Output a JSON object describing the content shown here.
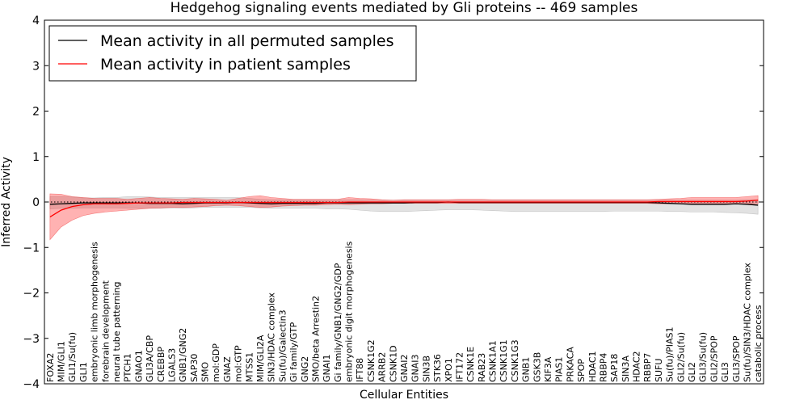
{
  "chart_data": {
    "type": "line",
    "title": "Hedgehog signaling events mediated by Gli proteins -- 469 samples",
    "xlabel": "Cellular Entities",
    "ylabel": "Inferred Activity",
    "ylim": [
      -4,
      4
    ],
    "yticks": [
      -4,
      -3,
      -2,
      -1,
      0,
      1,
      2,
      3,
      4
    ],
    "ytick_labels": [
      "−4",
      "−3",
      "−2",
      "−1",
      "0",
      "1",
      "2",
      "3",
      "4"
    ],
    "legend_position": "top-left",
    "categories": [
      "FOXA2",
      "MIM/GLI1",
      "GLI1/Su(fu)",
      "GLI1",
      "embryonic limb morphogenesis",
      "forebrain development",
      "neural tube patterning",
      "PTCH1",
      "GNAO1",
      "GLI3A/CBP",
      "CREBBP",
      "LGALS3",
      "GNB1/GNG2",
      "SAP30",
      "SMO",
      "mol:GDP",
      "GNAZ",
      "mol:GTP",
      "MTSS1",
      "MIM/GLI2A",
      "SIN3/HDAC complex",
      "Su(fu)/Galectin3",
      "Gi family/GTP",
      "GNG2",
      "SMO/beta Arrestin2",
      "GNAI1",
      "Gi family/GNB1/GNG2/GDP",
      "embryonic digit morphogenesis",
      "IFT88",
      "CSNK1G2",
      "ARRB2",
      "CSNK1D",
      "GNAI2",
      "GNAI3",
      "SIN3B",
      "STK36",
      "XPO1",
      "IFT172",
      "CSNK1E",
      "RAB23",
      "CSNK1A1",
      "CSNK1G1",
      "CSNK1G3",
      "GNB1",
      "GSK3B",
      "KIF3A",
      "PIAS1",
      "PRKACA",
      "SPOP",
      "HDAC1",
      "RBBP4",
      "SAP18",
      "SIN3A",
      "HDAC2",
      "RBBP7",
      "SUFU",
      "Su(fu)/PIAS1",
      "GLI2/Su(fu)",
      "GLI2",
      "GLI3/Su(fu)",
      "GLI2/SPOP",
      "GLI3",
      "GLI3/SPOP",
      "Su(fu)/SIN3/HDAC complex",
      "catabolic process"
    ],
    "series": [
      {
        "name": "Mean activity in all permuted samples",
        "color": "#000000",
        "values": [
          -0.05,
          -0.04,
          -0.03,
          -0.02,
          -0.02,
          -0.02,
          -0.02,
          -0.02,
          -0.02,
          -0.03,
          -0.03,
          -0.03,
          -0.04,
          -0.03,
          -0.02,
          -0.02,
          -0.02,
          -0.01,
          -0.02,
          -0.03,
          -0.04,
          -0.03,
          -0.03,
          -0.03,
          -0.03,
          -0.02,
          -0.02,
          -0.02,
          -0.02,
          -0.02,
          -0.02,
          -0.02,
          -0.02,
          -0.01,
          -0.01,
          -0.01,
          0.0,
          -0.01,
          -0.01,
          -0.01,
          -0.01,
          -0.01,
          -0.01,
          -0.01,
          -0.01,
          -0.01,
          -0.01,
          -0.01,
          -0.01,
          -0.01,
          -0.01,
          -0.01,
          -0.01,
          -0.01,
          -0.01,
          -0.02,
          -0.03,
          -0.04,
          -0.05,
          -0.05,
          -0.05,
          -0.05,
          -0.04,
          -0.05,
          -0.07
        ],
        "band_upper": [
          0.12,
          0.12,
          0.11,
          0.09,
          0.09,
          0.1,
          0.1,
          0.12,
          0.12,
          0.11,
          0.1,
          0.1,
          0.1,
          0.1,
          0.1,
          0.1,
          0.1,
          0.1,
          0.08,
          0.06,
          0.05,
          0.05,
          0.05,
          0.05,
          0.05,
          0.05,
          0.05,
          0.05,
          0.05,
          0.04,
          0.04,
          0.04,
          0.04,
          0.04,
          0.04,
          0.04,
          0.04,
          0.04,
          0.04,
          0.04,
          0.04,
          0.04,
          0.04,
          0.04,
          0.04,
          0.04,
          0.04,
          0.04,
          0.04,
          0.04,
          0.04,
          0.04,
          0.04,
          0.04,
          0.04,
          0.04,
          0.04,
          0.04,
          0.04,
          0.04,
          0.04,
          0.04,
          0.04,
          0.05,
          0.05
        ],
        "band_lower": [
          -0.15,
          -0.14,
          -0.14,
          -0.13,
          -0.13,
          -0.13,
          -0.13,
          -0.14,
          -0.14,
          -0.14,
          -0.14,
          -0.13,
          -0.14,
          -0.13,
          -0.12,
          -0.12,
          -0.12,
          -0.12,
          -0.12,
          -0.13,
          -0.14,
          -0.14,
          -0.14,
          -0.14,
          -0.14,
          -0.15,
          -0.15,
          -0.16,
          -0.18,
          -0.2,
          -0.21,
          -0.21,
          -0.21,
          -0.2,
          -0.19,
          -0.18,
          -0.17,
          -0.17,
          -0.17,
          -0.18,
          -0.19,
          -0.2,
          -0.21,
          -0.21,
          -0.21,
          -0.21,
          -0.21,
          -0.21,
          -0.21,
          -0.21,
          -0.21,
          -0.2,
          -0.2,
          -0.2,
          -0.2,
          -0.2,
          -0.21,
          -0.21,
          -0.22,
          -0.22,
          -0.22,
          -0.23,
          -0.24,
          -0.25,
          -0.27
        ]
      },
      {
        "name": "Mean activity in patient samples",
        "color": "#ff0000",
        "values": [
          -0.33,
          -0.18,
          -0.1,
          -0.06,
          -0.04,
          -0.04,
          -0.04,
          -0.03,
          -0.02,
          -0.02,
          -0.02,
          -0.02,
          -0.01,
          -0.01,
          -0.01,
          -0.01,
          -0.01,
          -0.01,
          -0.01,
          -0.01,
          -0.01,
          -0.01,
          -0.01,
          -0.01,
          -0.01,
          -0.01,
          -0.01,
          0.0,
          0.0,
          0.0,
          0.0,
          0.0,
          0.0,
          0.0,
          0.0,
          0.0,
          0.0,
          0.0,
          0.0,
          0.0,
          0.0,
          0.0,
          0.0,
          0.0,
          0.0,
          0.0,
          0.0,
          0.0,
          0.0,
          0.0,
          0.0,
          0.0,
          0.0,
          0.0,
          0.0,
          0.01,
          0.01,
          0.01,
          0.01,
          0.01,
          0.01,
          0.01,
          0.01,
          0.02,
          0.04
        ],
        "band_upper": [
          0.18,
          0.17,
          0.12,
          0.1,
          0.08,
          0.08,
          0.08,
          0.06,
          0.08,
          0.1,
          0.08,
          0.07,
          0.06,
          0.08,
          0.07,
          0.06,
          0.04,
          0.08,
          0.12,
          0.14,
          0.1,
          0.08,
          0.06,
          0.06,
          0.06,
          0.06,
          0.06,
          0.1,
          0.08,
          0.07,
          0.05,
          0.04,
          0.05,
          0.05,
          0.05,
          0.05,
          0.05,
          0.06,
          0.06,
          0.06,
          0.05,
          0.05,
          0.05,
          0.05,
          0.05,
          0.05,
          0.05,
          0.05,
          0.05,
          0.05,
          0.05,
          0.05,
          0.05,
          0.05,
          0.05,
          0.06,
          0.07,
          0.08,
          0.1,
          0.1,
          0.1,
          0.1,
          0.1,
          0.12,
          0.14
        ],
        "band_lower": [
          -0.83,
          -0.55,
          -0.4,
          -0.3,
          -0.25,
          -0.22,
          -0.2,
          -0.18,
          -0.16,
          -0.14,
          -0.13,
          -0.12,
          -0.12,
          -0.11,
          -0.1,
          -0.08,
          -0.07,
          -0.08,
          -0.1,
          -0.12,
          -0.11,
          -0.09,
          -0.08,
          -0.07,
          -0.07,
          -0.06,
          -0.05,
          -0.06,
          -0.05,
          -0.04,
          -0.04,
          -0.03,
          -0.03,
          -0.03,
          -0.03,
          -0.03,
          -0.03,
          -0.03,
          -0.03,
          -0.03,
          -0.03,
          -0.03,
          -0.03,
          -0.03,
          -0.03,
          -0.03,
          -0.03,
          -0.03,
          -0.03,
          -0.03,
          -0.03,
          -0.03,
          -0.03,
          -0.03,
          -0.03,
          -0.04,
          -0.04,
          -0.04,
          -0.04,
          -0.04,
          -0.04,
          -0.04,
          -0.04,
          -0.04,
          -0.04
        ]
      }
    ],
    "reference_line": {
      "y": 0,
      "style": "dotted"
    }
  }
}
